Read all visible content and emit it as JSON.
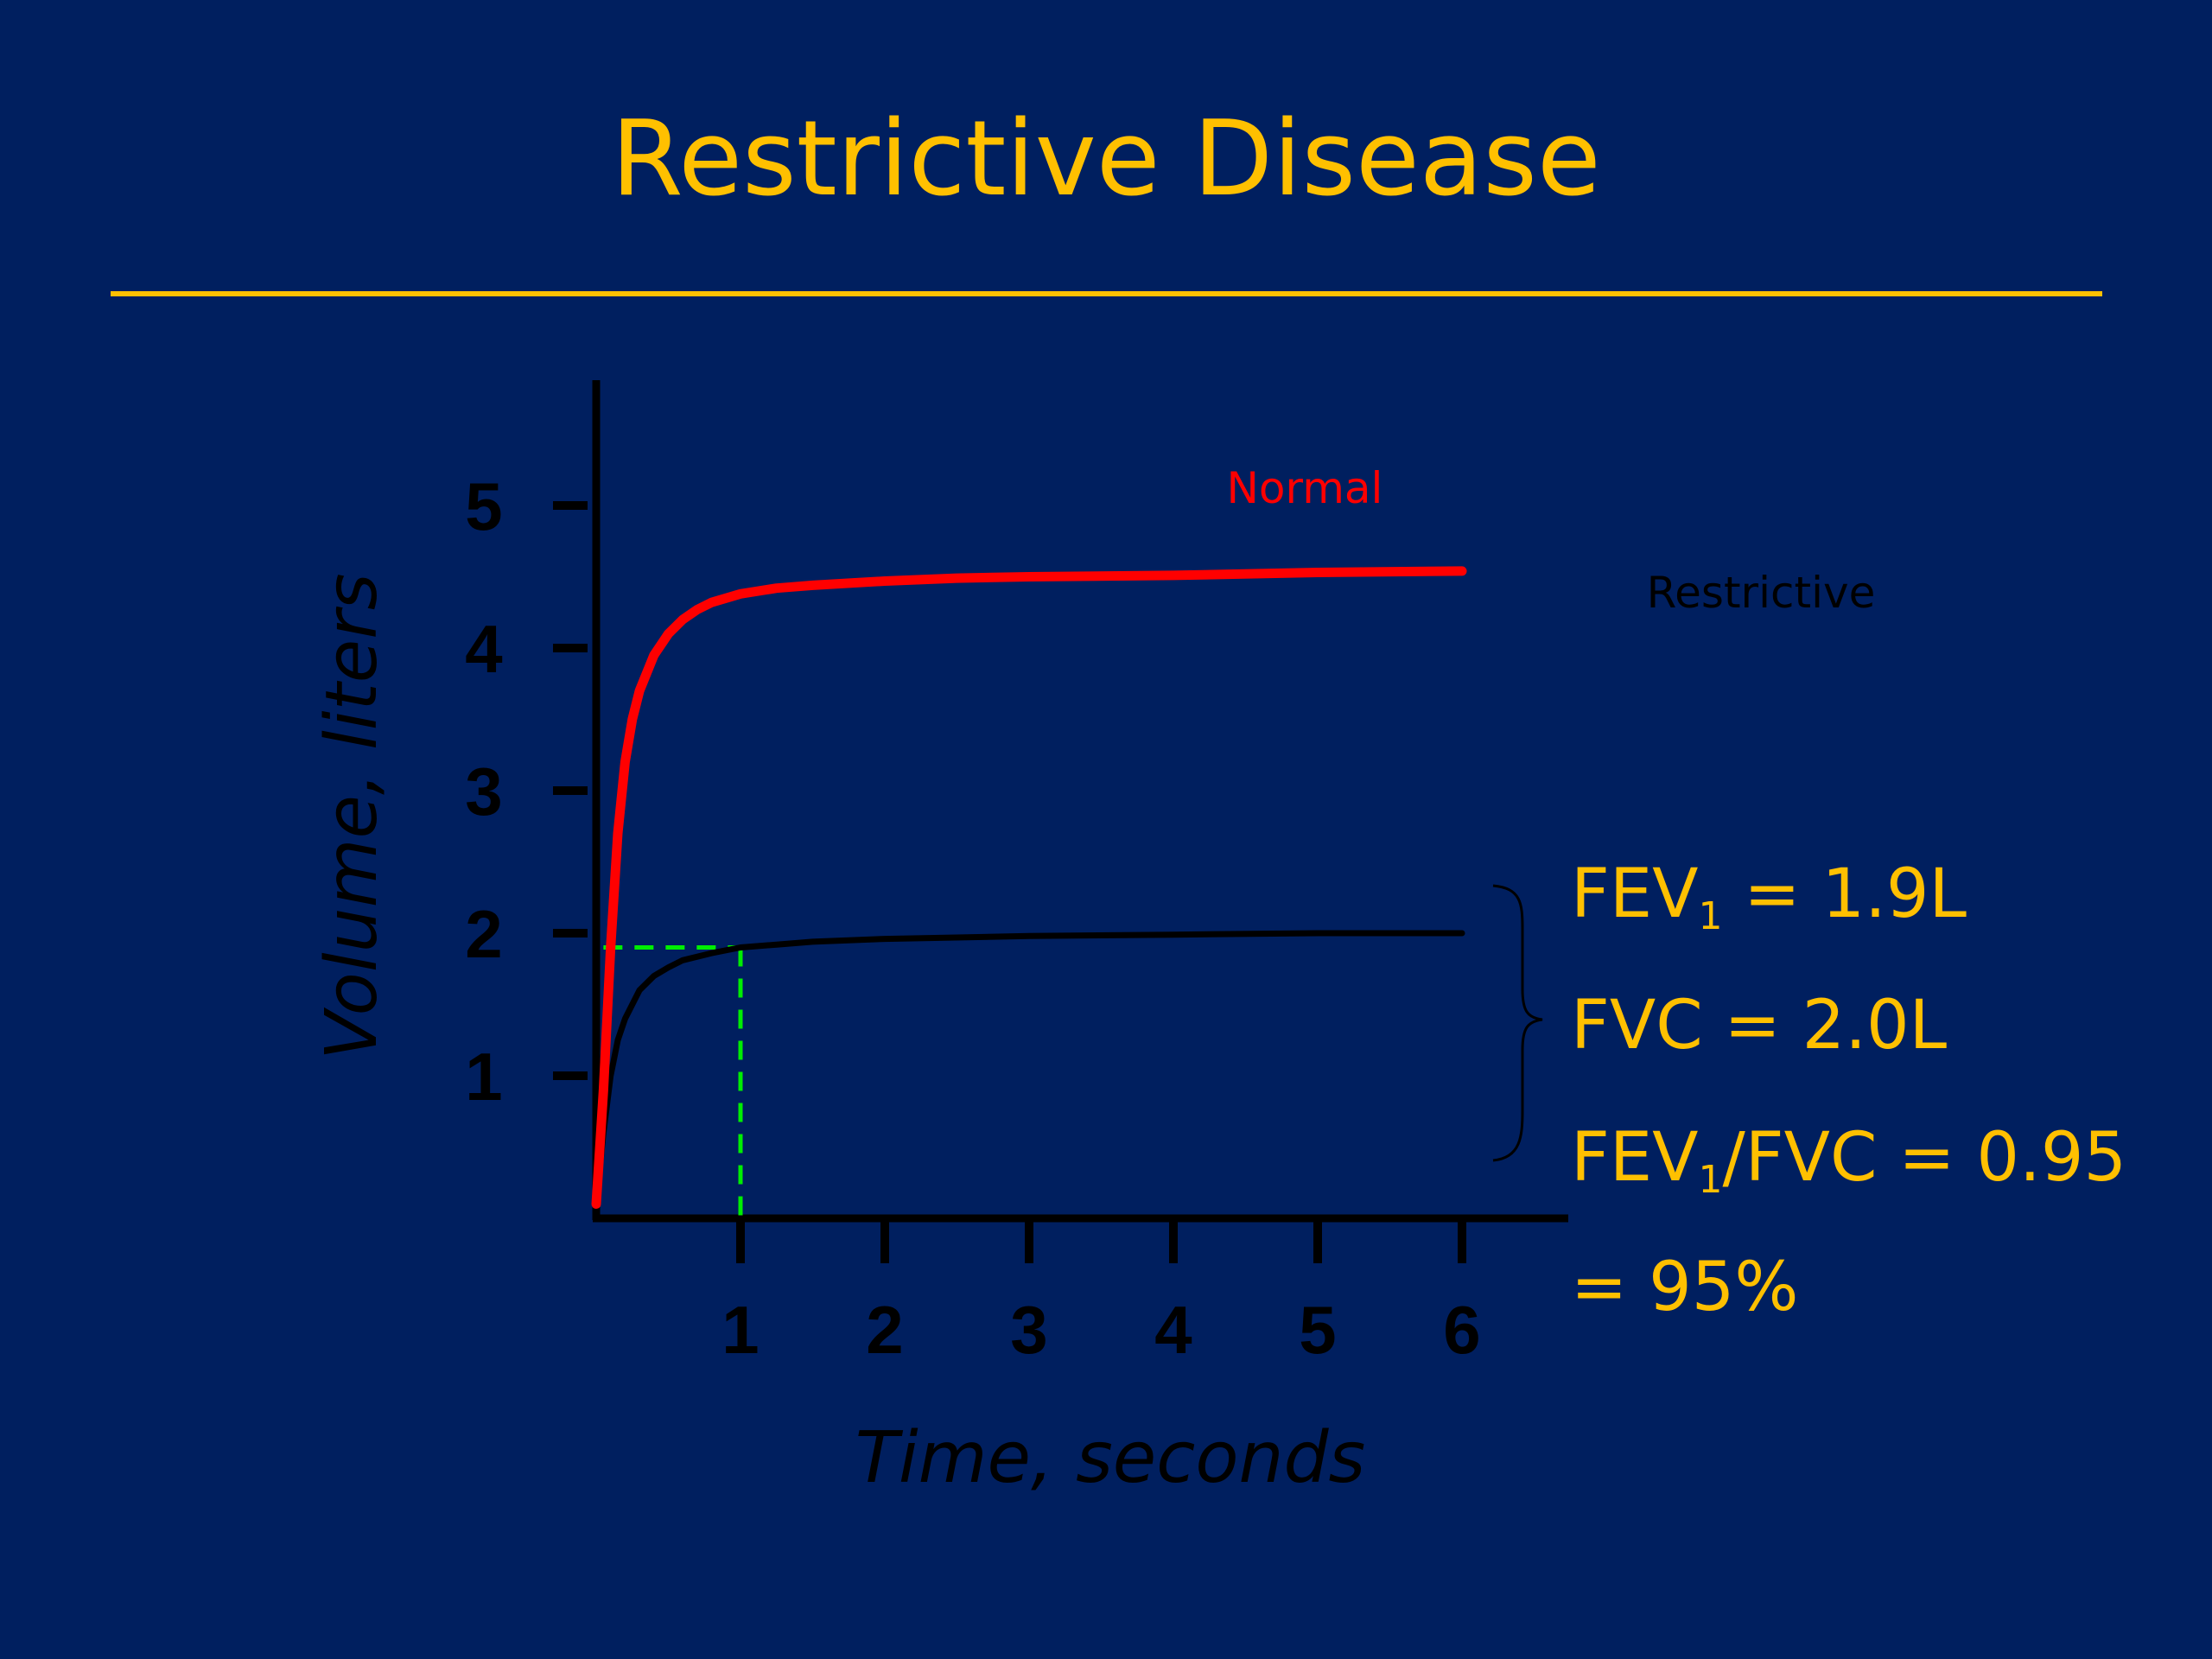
{
  "slide": {
    "title": "Restrictive Disease",
    "background_color": "#001f5f",
    "accent_color": "#ffc000"
  },
  "chart_data": {
    "type": "line",
    "xlabel": "Time, seconds",
    "ylabel": "Volume, liters",
    "x_ticks": [
      1,
      2,
      3,
      4,
      5,
      6
    ],
    "y_ticks": [
      1,
      2,
      3,
      4,
      5
    ],
    "xlim": [
      0,
      6
    ],
    "ylim": [
      0,
      5
    ],
    "grid": false,
    "series": [
      {
        "name": "Normal",
        "color": "#ff0000",
        "x": [
          0.0,
          0.05,
          0.1,
          0.15,
          0.2,
          0.25,
          0.3,
          0.4,
          0.5,
          0.6,
          0.7,
          0.8,
          1.0,
          1.25,
          1.5,
          2.0,
          2.5,
          3.0,
          4.0,
          5.0,
          6.0
        ],
        "y": [
          0.1,
          0.9,
          1.9,
          2.7,
          3.2,
          3.5,
          3.7,
          3.95,
          4.1,
          4.2,
          4.27,
          4.32,
          4.38,
          4.42,
          4.44,
          4.47,
          4.49,
          4.5,
          4.51,
          4.53,
          4.54
        ]
      },
      {
        "name": "Restrictive",
        "color": "#000000",
        "x": [
          0.0,
          0.05,
          0.1,
          0.15,
          0.2,
          0.3,
          0.4,
          0.5,
          0.6,
          0.8,
          1.0,
          1.25,
          1.5,
          2.0,
          2.5,
          3.0,
          4.0,
          5.0,
          6.0
        ],
        "y": [
          0.1,
          0.6,
          1.0,
          1.25,
          1.4,
          1.6,
          1.7,
          1.76,
          1.81,
          1.86,
          1.9,
          1.92,
          1.94,
          1.96,
          1.97,
          1.98,
          1.99,
          2.0,
          2.0
        ]
      }
    ],
    "annotations": {
      "fev1_marker": {
        "x": 1.0,
        "y": 1.9,
        "color": "#00ee00"
      }
    }
  },
  "stats": {
    "fev1_prefix": "FEV",
    "fev1_sub": "1",
    "fev1_suffix": " = 1.9L",
    "fvc": "FVC = 2.0L",
    "ratio_prefix": "FEV",
    "ratio_sub": "1",
    "ratio_suffix": "/FVC = 0.95",
    "percent": "= 95%"
  }
}
